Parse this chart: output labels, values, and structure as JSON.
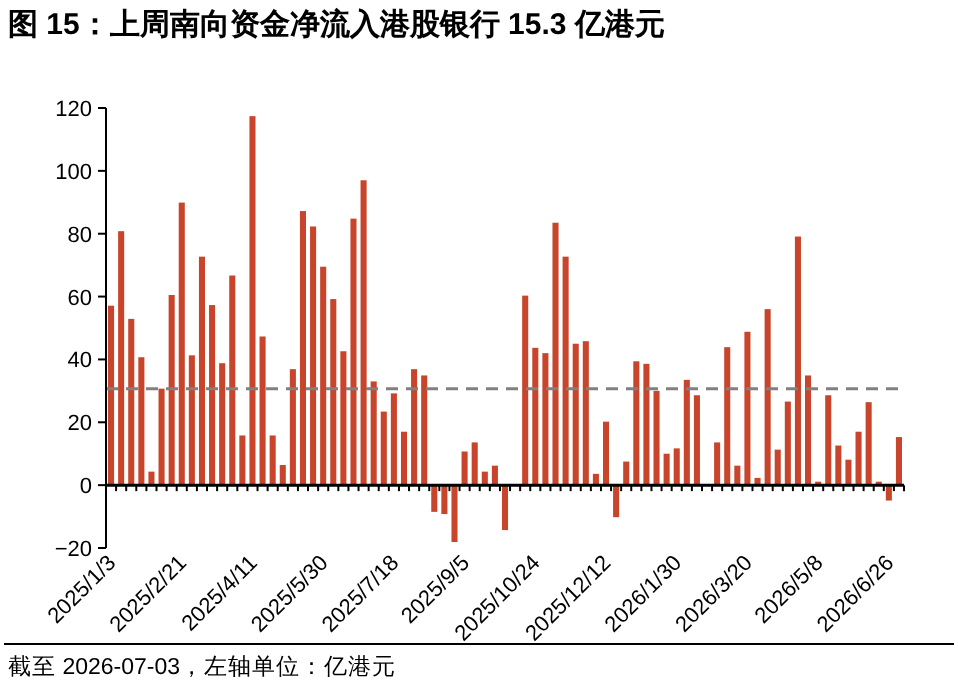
{
  "chart_data": {
    "type": "bar",
    "title": "图 15：上周南向资金净流入港股银行 15.3 亿港元",
    "categories": [
      "2025/1/3",
      null,
      null,
      null,
      null,
      null,
      null,
      "2025/2/21",
      null,
      null,
      null,
      null,
      null,
      null,
      "2025/4/11",
      null,
      null,
      null,
      null,
      null,
      null,
      "2025/5/30",
      null,
      null,
      null,
      null,
      null,
      null,
      "2025/7/18",
      null,
      null,
      null,
      null,
      null,
      null,
      "2025/9/5",
      null,
      null,
      null,
      null,
      null,
      null,
      "2025/10/24",
      null,
      null,
      null,
      null,
      null,
      null,
      "2025/12/12",
      null,
      null,
      null,
      null,
      null,
      null,
      "2026/1/30",
      null,
      null,
      null,
      null,
      null,
      null,
      "2026/3/20",
      null,
      null,
      null,
      null,
      null,
      null,
      "2026/5/8",
      null,
      null,
      null,
      null,
      null,
      null,
      "2026/6/26",
      null
    ],
    "values": [
      57.1,
      80.8,
      52.9,
      40.7,
      4.3,
      30.7,
      60.5,
      89.9,
      41.3,
      72.7,
      57.3,
      38.8,
      66.7,
      15.8,
      117.4,
      47.3,
      15.8,
      6.4,
      36.9,
      87.2,
      82.3,
      69.5,
      59.2,
      42.6,
      84.8,
      97.0,
      33.0,
      23.4,
      29.2,
      17.0,
      36.9,
      34.9,
      -8.5,
      -9.2,
      -18.1,
      10.7,
      13.6,
      4.3,
      6.2,
      -14.3,
      0,
      60.3,
      43.7,
      42.0,
      83.5,
      72.7,
      45.0,
      45.8,
      3.6,
      20.2,
      -10.2,
      7.5,
      39.4,
      38.6,
      30.0,
      10.0,
      11.7,
      33.5,
      28.6,
      null,
      13.6,
      43.9,
      6.2,
      48.8,
      2.3,
      56.0,
      11.3,
      26.6,
      79.1,
      34.9,
      1.1,
      28.6,
      12.6,
      8.1,
      17.0,
      26.4,
      1.1,
      -4.9,
      15.3
    ],
    "color": "#c8442a",
    "ylim": [
      -20,
      120
    ],
    "yticks": [
      -20,
      0,
      20,
      40,
      60,
      80,
      100,
      120
    ],
    "ref_lines": [
      {
        "axis": "y",
        "value": 30.7,
        "color": "#808080",
        "line_style": "dashed"
      }
    ],
    "annotations": [
      "截至 2026-07-03，左轴单位：亿港元"
    ]
  }
}
